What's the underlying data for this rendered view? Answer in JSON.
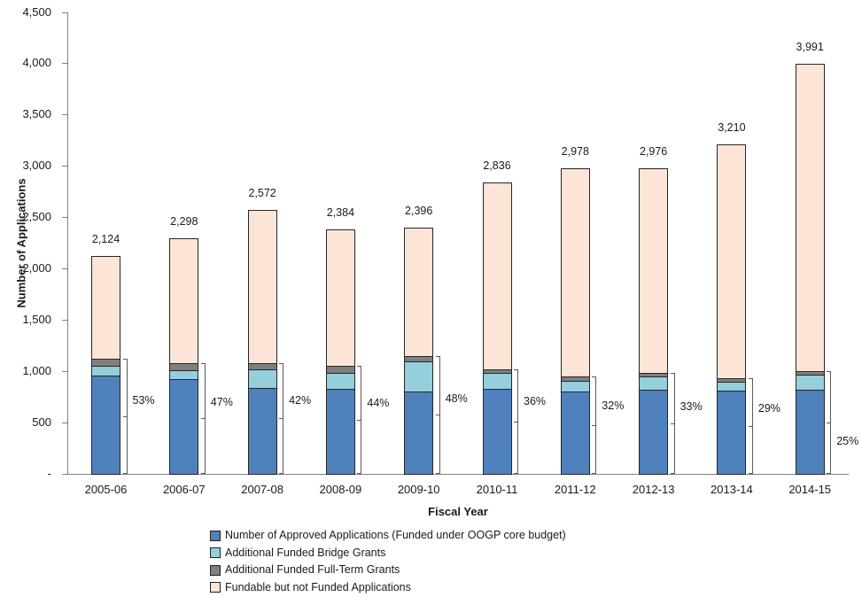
{
  "chart_data": {
    "type": "bar",
    "subtype": "stacked-vertical",
    "title": "",
    "xlabel": "Fiscal Year",
    "ylabel": "Number of Applications",
    "ylim": [
      0,
      4500
    ],
    "ytick_step": 500,
    "ytick_labels": [
      "-",
      "500",
      "1,000",
      "1,500",
      "2,000",
      "2,500",
      "3,000",
      "3,500",
      "4,000",
      "4,500"
    ],
    "grid": "off",
    "legend_position": "bottom",
    "categories": [
      "2005-06",
      "2006-07",
      "2007-08",
      "2008-09",
      "2009-10",
      "2010-11",
      "2011-12",
      "2012-13",
      "2013-14",
      "2014-15"
    ],
    "series": [
      {
        "name": "Number of Approved Applications (Funded under OOGP core budget)",
        "color": "#4F81BD",
        "values": [
          960,
          920,
          835,
          830,
          805,
          830,
          805,
          820,
          810,
          817
        ]
      },
      {
        "name": "Additional Funded Bridge Grants",
        "color": "#95CFDC",
        "values": [
          90,
          90,
          180,
          153,
          295,
          150,
          100,
          128,
          90,
          147
        ]
      },
      {
        "name": "Additional Funded Full-Term Grants",
        "color": "#7F7F7F",
        "values": [
          76,
          70,
          65,
          66,
          50,
          41,
          48,
          34,
          31,
          34
        ]
      },
      {
        "name": "Fundable but not Funded Applications",
        "color": "#FCE4D6",
        "values": [
          998,
          1218,
          1492,
          1335,
          1246,
          1815,
          2025,
          1994,
          2279,
          2993
        ]
      }
    ],
    "total_labels": [
      "2,124",
      "2,298",
      "2,572",
      "2,384",
      "2,396",
      "2,836",
      "2,978",
      "2,976",
      "3,210",
      "3,991"
    ],
    "success_rate_labels": [
      "53%",
      "47%",
      "42%",
      "44%",
      "48%",
      "36%",
      "32%",
      "33%",
      "29%",
      "25%"
    ],
    "layout_hints": {
      "rate_label_y": [
        452,
        454,
        452,
        455,
        450,
        453,
        458,
        459,
        461,
        498
      ],
      "axis_color": "#808080",
      "bar_border_color": "#262626",
      "bracket_color": "#595959"
    }
  }
}
